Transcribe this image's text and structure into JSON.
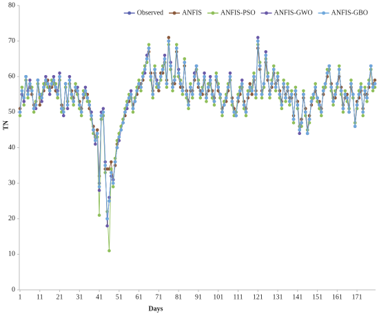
{
  "chart_data": {
    "type": "line",
    "x_label": "Days",
    "y_label": "TN",
    "x": [
      1,
      2,
      3,
      4,
      5,
      6,
      7,
      8,
      9,
      10,
      11,
      12,
      13,
      14,
      15,
      16,
      17,
      18,
      19,
      20,
      21,
      22,
      23,
      24,
      25,
      26,
      27,
      28,
      29,
      30,
      31,
      32,
      33,
      34,
      35,
      36,
      37,
      38,
      39,
      40,
      41,
      42,
      43,
      44,
      45,
      46,
      47,
      48,
      49,
      50,
      51,
      52,
      53,
      54,
      55,
      56,
      57,
      58,
      59,
      60,
      61,
      62,
      63,
      64,
      65,
      66,
      67,
      68,
      69,
      70,
      71,
      72,
      73,
      74,
      75,
      76,
      77,
      78,
      79,
      80,
      81,
      82,
      83,
      84,
      85,
      86,
      87,
      88,
      89,
      90,
      91,
      92,
      93,
      94,
      95,
      96,
      97,
      98,
      99,
      100,
      101,
      102,
      103,
      104,
      105,
      106,
      107,
      108,
      109,
      110,
      111,
      112,
      113,
      114,
      115,
      116,
      117,
      118,
      119,
      120,
      121,
      122,
      123,
      124,
      125,
      126,
      127,
      128,
      129,
      130,
      131,
      132,
      133,
      134,
      135,
      136,
      137,
      138,
      139,
      140,
      141,
      142,
      143,
      144,
      145,
      146,
      147,
      148,
      149,
      150,
      151,
      152,
      153,
      154,
      155,
      156,
      157,
      158,
      159,
      160,
      161,
      162,
      163,
      164,
      165,
      166,
      167,
      168,
      169,
      170,
      171,
      172,
      173,
      174,
      175,
      176,
      177,
      178,
      179,
      180
    ],
    "xlim": [
      1,
      180
    ],
    "xticks": [
      1,
      11,
      21,
      31,
      41,
      51,
      61,
      71,
      81,
      91,
      101,
      111,
      121,
      131,
      141,
      151,
      161,
      171
    ],
    "ylim": [
      0,
      80
    ],
    "yticks": [
      0,
      10,
      20,
      30,
      40,
      50,
      60,
      70,
      80
    ],
    "grid": false,
    "legend": "top-right",
    "series": [
      {
        "name": "Observed",
        "color": "#5b63b0",
        "values": [
          50,
          56,
          53,
          60,
          55,
          58,
          56,
          51,
          52,
          59,
          55,
          54,
          57,
          59,
          58,
          56,
          58,
          59,
          57,
          55,
          60,
          51,
          50,
          58,
          52,
          59,
          55,
          53,
          57,
          56,
          52,
          50,
          55,
          56,
          54,
          52,
          49,
          45,
          42,
          44,
          30,
          49,
          50,
          35,
          20,
          25,
          33,
          30,
          36,
          40,
          43,
          45,
          47,
          50,
          52,
          54,
          55,
          51,
          53,
          56,
          58,
          57,
          60,
          62,
          65,
          68,
          60,
          55,
          62,
          58,
          57,
          60,
          62,
          65,
          58,
          70,
          63,
          57,
          59,
          68,
          61,
          58,
          56,
          64,
          55,
          52,
          57,
          55,
          60,
          63,
          58,
          55,
          56,
          60,
          54,
          57,
          59,
          55,
          53,
          60,
          57,
          55,
          50,
          52,
          54,
          57,
          60,
          53,
          50,
          49,
          54,
          56,
          58,
          52,
          50,
          55,
          57,
          56,
          60,
          55,
          70,
          63,
          55,
          58,
          66,
          60,
          55,
          58,
          62,
          57,
          60,
          55,
          52,
          58,
          54,
          57,
          53,
          55,
          48,
          56,
          52,
          45,
          47,
          55,
          50,
          44,
          48,
          53,
          55,
          57,
          54,
          52,
          50,
          56,
          58,
          61,
          63,
          57,
          53,
          55,
          58,
          62,
          56,
          51,
          55,
          54,
          50,
          58,
          55,
          46,
          52,
          55,
          57,
          50,
          56,
          54,
          58,
          63,
          57,
          58
        ]
      },
      {
        "name": "ANFIS",
        "color": "#8b5a3c",
        "values": [
          51,
          55,
          54,
          59,
          56,
          57,
          55,
          52,
          53,
          58,
          52,
          55,
          56,
          58,
          59,
          57,
          57,
          58,
          56,
          54,
          59,
          52,
          51,
          57,
          53,
          58,
          56,
          54,
          56,
          55,
          53,
          51,
          54,
          55,
          55,
          51,
          48,
          46,
          43,
          45,
          32,
          48,
          49,
          34,
          34,
          34,
          36,
          31,
          35,
          41,
          44,
          46,
          48,
          49,
          53,
          53,
          54,
          52,
          54,
          55,
          57,
          58,
          59,
          63,
          64,
          67,
          61,
          56,
          61,
          57,
          56,
          61,
          61,
          64,
          59,
          71,
          62,
          58,
          58,
          67,
          60,
          57,
          57,
          63,
          56,
          53,
          56,
          56,
          59,
          62,
          57,
          56,
          55,
          59,
          55,
          56,
          58,
          56,
          54,
          59,
          56,
          54,
          51,
          53,
          53,
          56,
          59,
          54,
          51,
          50,
          53,
          55,
          57,
          53,
          51,
          54,
          58,
          55,
          59,
          56,
          68,
          62,
          56,
          57,
          64,
          59,
          56,
          57,
          61,
          58,
          59,
          56,
          53,
          57,
          55,
          56,
          54,
          54,
          49,
          55,
          53,
          46,
          48,
          54,
          51,
          45,
          49,
          52,
          54,
          56,
          53,
          53,
          51,
          55,
          57,
          60,
          62,
          58,
          54,
          54,
          57,
          60,
          57,
          52,
          54,
          55,
          51,
          57,
          54,
          47,
          53,
          54,
          56,
          51,
          55,
          55,
          57,
          62,
          58,
          59
        ]
      },
      {
        "name": "ANFIS-PSO",
        "color": "#8fbf5a",
        "values": [
          49,
          57,
          52,
          59,
          54,
          58,
          57,
          50,
          53,
          58,
          54,
          55,
          58,
          58,
          57,
          56,
          59,
          58,
          58,
          54,
          59,
          50,
          51,
          57,
          53,
          58,
          54,
          52,
          58,
          55,
          51,
          49,
          56,
          55,
          53,
          53,
          48,
          44,
          43,
          43,
          21,
          48,
          49,
          33,
          22,
          11,
          34,
          29,
          37,
          42,
          44,
          46,
          48,
          51,
          53,
          55,
          54,
          50,
          54,
          57,
          59,
          56,
          61,
          63,
          64,
          69,
          59,
          54,
          63,
          57,
          58,
          59,
          63,
          64,
          57,
          69,
          62,
          56,
          60,
          69,
          60,
          59,
          55,
          65,
          54,
          51,
          58,
          54,
          61,
          62,
          59,
          54,
          57,
          59,
          53,
          58,
          58,
          54,
          52,
          61,
          58,
          54,
          49,
          53,
          55,
          58,
          59,
          52,
          49,
          50,
          55,
          57,
          57,
          51,
          49,
          56,
          56,
          57,
          61,
          54,
          69,
          64,
          54,
          57,
          65,
          61,
          54,
          59,
          63,
          56,
          61,
          54,
          51,
          59,
          53,
          58,
          52,
          56,
          47,
          57,
          51,
          46,
          46,
          56,
          49,
          45,
          47,
          54,
          54,
          58,
          53,
          51,
          49,
          57,
          57,
          62,
          62,
          56,
          52,
          56,
          57,
          63,
          55,
          50,
          56,
          53,
          51,
          59,
          54,
          47,
          51,
          56,
          58,
          49,
          57,
          53,
          59,
          62,
          56,
          57
        ]
      },
      {
        "name": "ANFIS-GWO",
        "color": "#6a5aa8",
        "values": [
          50,
          55,
          53,
          60,
          56,
          59,
          56,
          51,
          51,
          59,
          55,
          53,
          57,
          60,
          58,
          55,
          58,
          60,
          57,
          56,
          61,
          51,
          49,
          58,
          51,
          60,
          55,
          53,
          57,
          57,
          52,
          50,
          55,
          57,
          54,
          52,
          50,
          45,
          41,
          44,
          28,
          50,
          51,
          36,
          18,
          26,
          32,
          31,
          36,
          40,
          42,
          45,
          47,
          50,
          51,
          54,
          56,
          51,
          53,
          56,
          58,
          57,
          60,
          61,
          66,
          68,
          60,
          55,
          62,
          59,
          57,
          60,
          62,
          66,
          58,
          70,
          64,
          57,
          59,
          68,
          62,
          58,
          56,
          64,
          55,
          52,
          57,
          55,
          61,
          63,
          58,
          55,
          56,
          61,
          54,
          57,
          60,
          55,
          53,
          60,
          57,
          55,
          50,
          52,
          54,
          57,
          61,
          53,
          50,
          49,
          54,
          56,
          59,
          52,
          50,
          55,
          57,
          56,
          60,
          55,
          71,
          63,
          55,
          58,
          67,
          60,
          55,
          58,
          62,
          57,
          60,
          55,
          52,
          58,
          54,
          57,
          53,
          55,
          48,
          56,
          52,
          44,
          47,
          55,
          50,
          44,
          48,
          53,
          55,
          57,
          54,
          52,
          50,
          56,
          58,
          61,
          63,
          57,
          53,
          55,
          58,
          62,
          56,
          51,
          55,
          54,
          50,
          58,
          55,
          46,
          52,
          55,
          57,
          50,
          56,
          54,
          58,
          63,
          57,
          58
        ]
      },
      {
        "name": "ANFIS-GBO",
        "color": "#6fa8dc",
        "values": [
          50,
          56,
          54,
          60,
          55,
          58,
          56,
          51,
          52,
          59,
          55,
          54,
          57,
          59,
          58,
          56,
          58,
          59,
          57,
          55,
          60,
          51,
          50,
          58,
          52,
          59,
          55,
          53,
          57,
          56,
          52,
          50,
          55,
          56,
          54,
          52,
          49,
          45,
          42,
          44,
          29,
          49,
          50,
          35,
          20,
          25,
          33,
          30,
          36,
          40,
          43,
          45,
          47,
          50,
          52,
          54,
          55,
          51,
          53,
          56,
          58,
          57,
          60,
          62,
          65,
          68,
          60,
          55,
          62,
          58,
          57,
          60,
          62,
          65,
          58,
          70,
          63,
          57,
          59,
          68,
          61,
          58,
          56,
          64,
          55,
          52,
          57,
          55,
          60,
          63,
          58,
          55,
          56,
          60,
          54,
          57,
          59,
          55,
          53,
          60,
          57,
          55,
          50,
          52,
          54,
          57,
          60,
          53,
          50,
          49,
          54,
          56,
          58,
          52,
          50,
          55,
          57,
          56,
          60,
          55,
          70,
          63,
          55,
          58,
          66,
          60,
          55,
          58,
          62,
          57,
          60,
          55,
          52,
          58,
          54,
          57,
          53,
          55,
          48,
          56,
          52,
          45,
          47,
          55,
          50,
          44,
          48,
          53,
          55,
          57,
          54,
          52,
          50,
          56,
          58,
          61,
          63,
          57,
          53,
          55,
          58,
          62,
          56,
          51,
          55,
          54,
          50,
          58,
          55,
          46,
          52,
          55,
          57,
          50,
          56,
          54,
          58,
          63,
          57,
          58
        ]
      }
    ]
  }
}
